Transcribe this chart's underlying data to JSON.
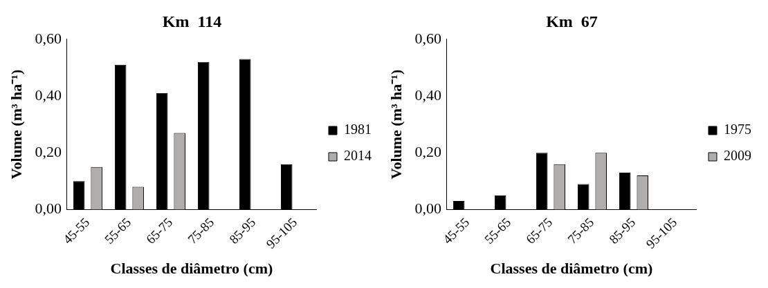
{
  "chart_data": [
    {
      "type": "bar",
      "title": "Km  114",
      "xlabel": "Classes de diâmetro (cm)",
      "ylabel": "Volume (m³ ha⁻¹)",
      "categories": [
        "45-55",
        "55-65",
        "65-75",
        "75-85",
        "85-95",
        "95-105"
      ],
      "series": [
        {
          "name": "1981",
          "color": "#000000",
          "values": [
            0.1,
            0.51,
            0.41,
            0.52,
            0.53,
            0.16
          ]
        },
        {
          "name": "2014",
          "color": "#b0aeac",
          "values": [
            0.15,
            0.08,
            0.27,
            null,
            null,
            null
          ]
        }
      ],
      "ylim": [
        0,
        0.6
      ],
      "yticks": [
        {
          "value": 0,
          "label": "0,00"
        },
        {
          "value": 0.2,
          "label": "0,20"
        },
        {
          "value": 0.4,
          "label": "0,40"
        },
        {
          "value": 0.6,
          "label": "0,60"
        }
      ],
      "legend": "right"
    },
    {
      "type": "bar",
      "title": "Km  67",
      "xlabel": "Classes de diâmetro (cm)",
      "ylabel": "Volume (m³ ha⁻¹)",
      "categories": [
        "45-55",
        "55-65",
        "65-75",
        "75-85",
        "85-95",
        "95-105"
      ],
      "series": [
        {
          "name": "1975",
          "color": "#000000",
          "values": [
            0.03,
            0.05,
            0.2,
            0.09,
            0.13,
            null
          ]
        },
        {
          "name": "2009",
          "color": "#b0aeac",
          "values": [
            null,
            null,
            0.16,
            0.2,
            0.12,
            null
          ]
        }
      ],
      "ylim": [
        0,
        0.6
      ],
      "yticks": [
        {
          "value": 0,
          "label": "0,00"
        },
        {
          "value": 0.2,
          "label": "0,20"
        },
        {
          "value": 0.4,
          "label": "0,40"
        },
        {
          "value": 0.6,
          "label": "0,60"
        }
      ],
      "legend": "right"
    }
  ]
}
